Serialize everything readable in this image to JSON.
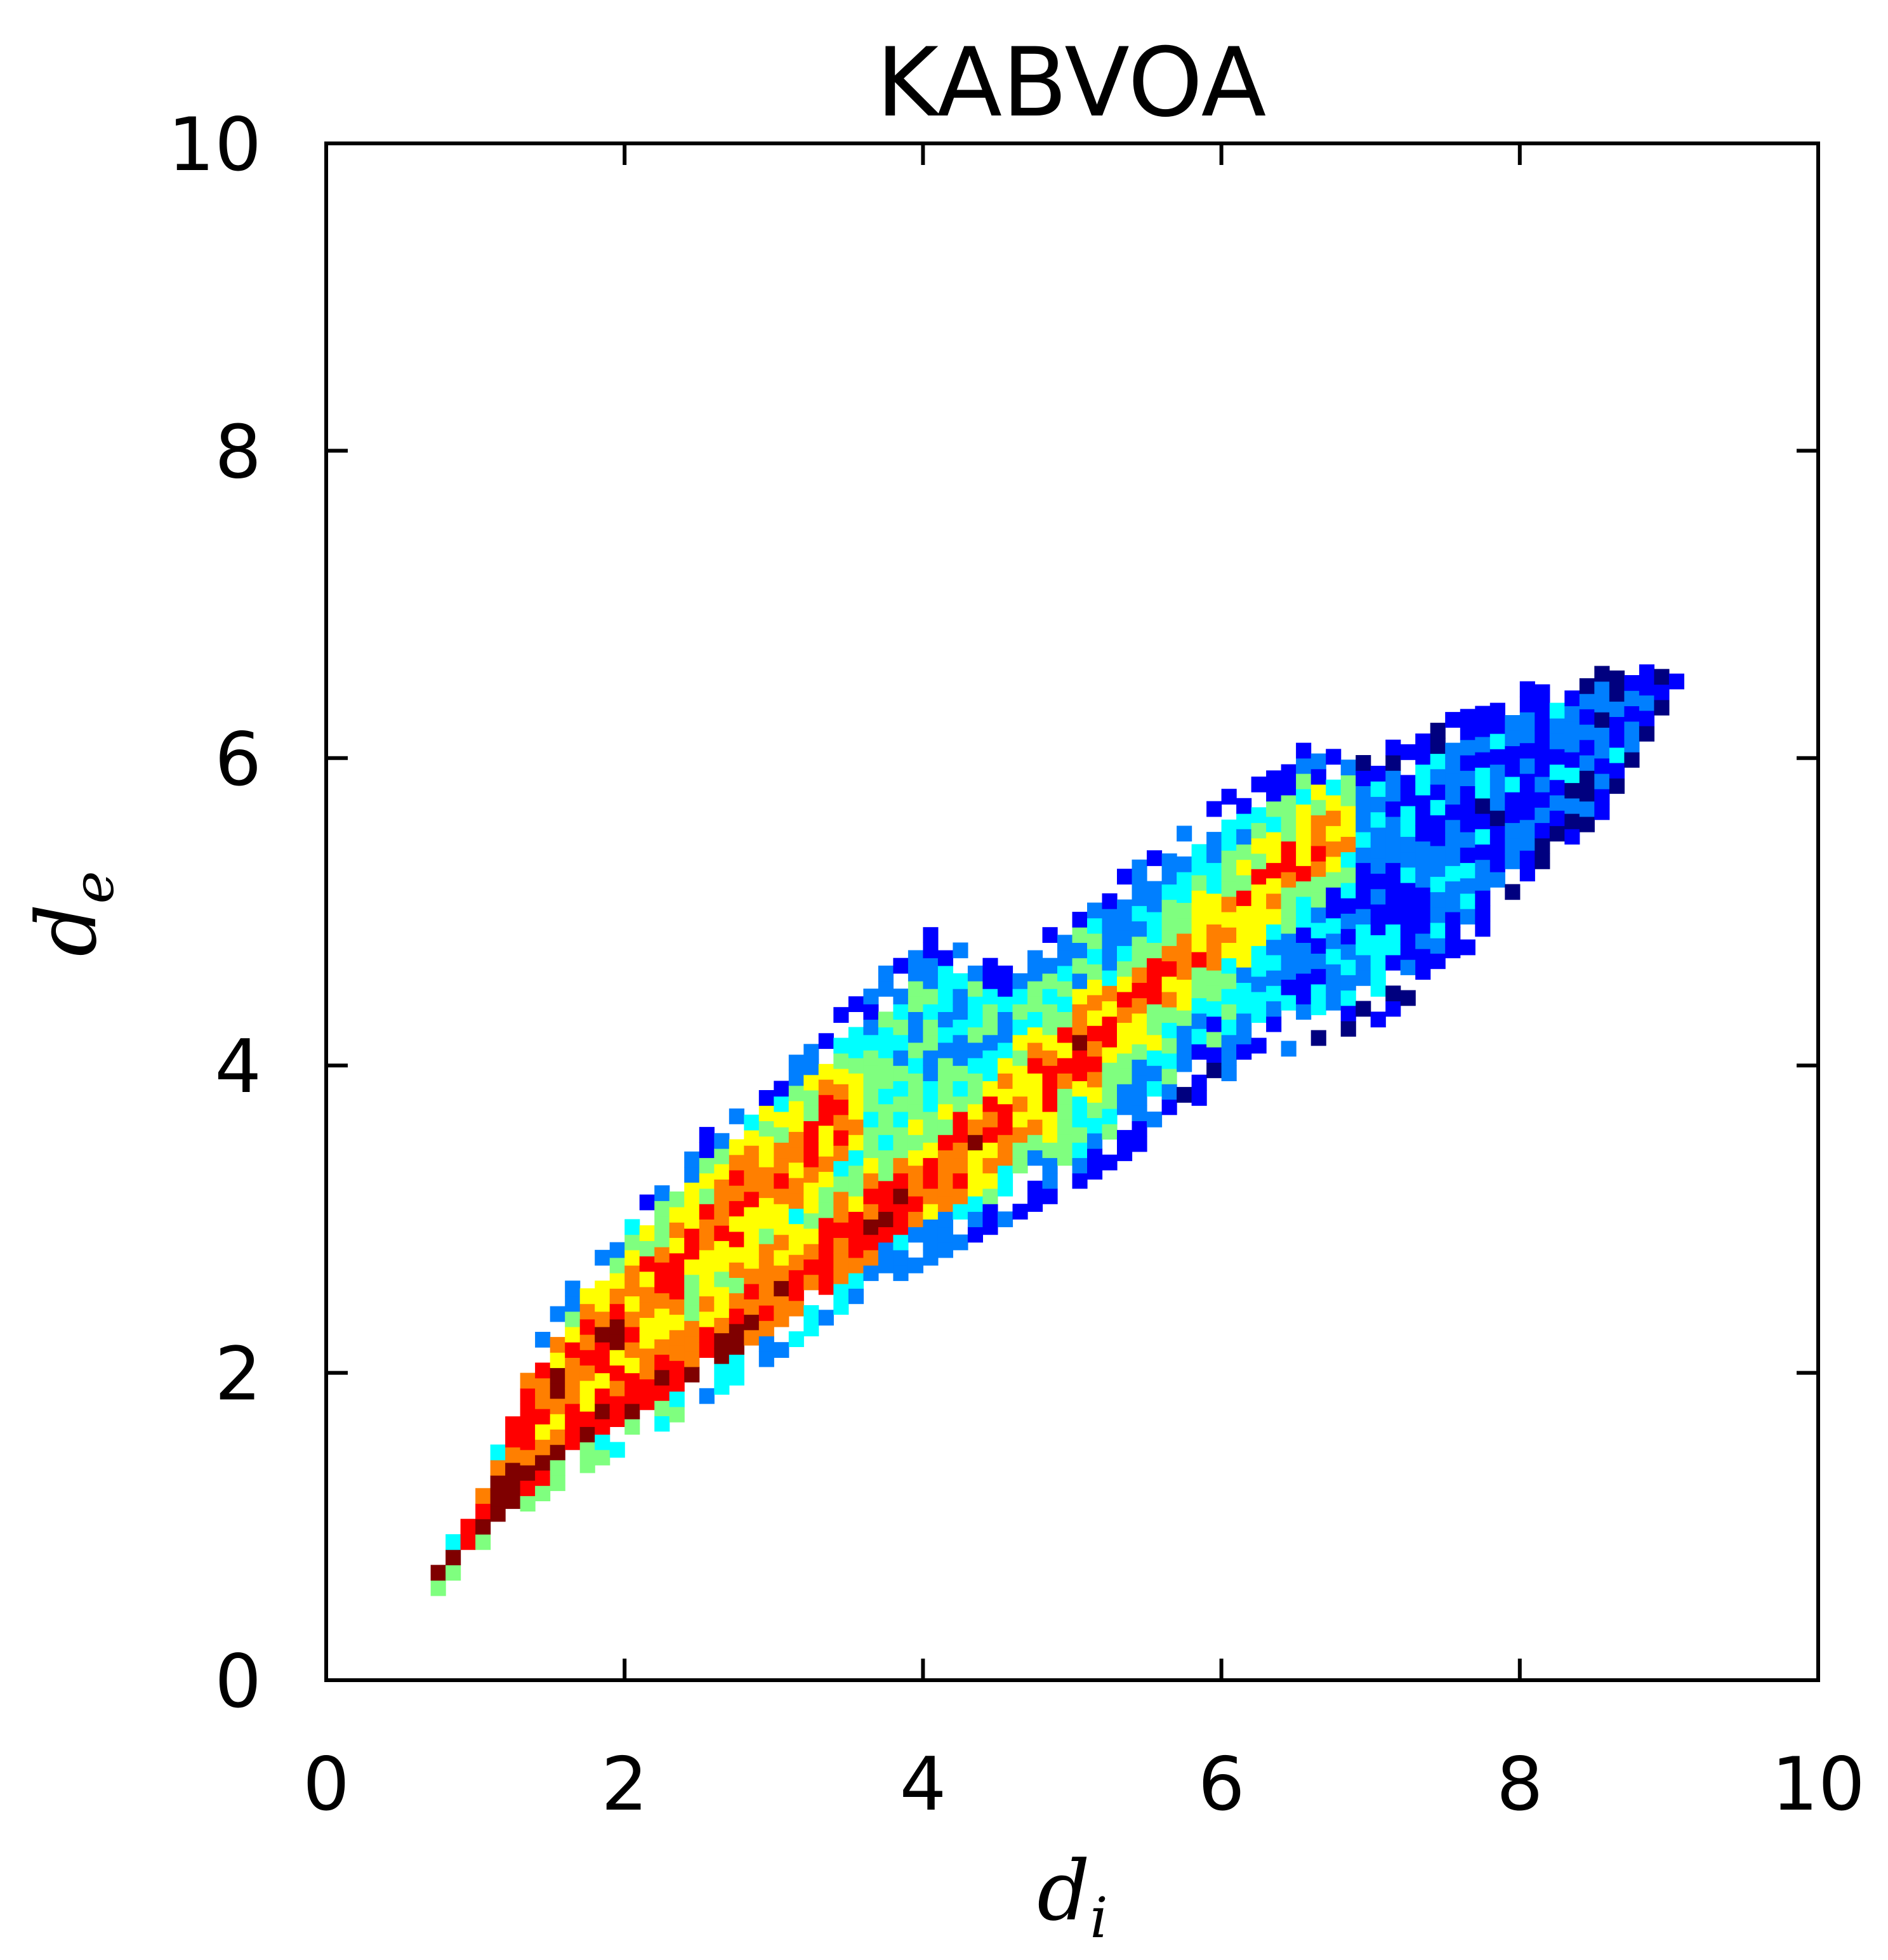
{
  "chart_data": {
    "type": "heatmap",
    "title": "KABVOA",
    "xlabel": {
      "base": "d",
      "sub": "i"
    },
    "ylabel": {
      "base": "d",
      "sub": "e"
    },
    "xlim": [
      0,
      10
    ],
    "ylim": [
      0,
      10
    ],
    "x_ticks": [
      0,
      2,
      4,
      6,
      8,
      10
    ],
    "y_ticks": [
      0,
      2,
      4,
      6,
      8,
      10
    ],
    "x_tick_labels": [
      "0",
      "2",
      "4",
      "6",
      "8",
      "10"
    ],
    "y_tick_labels": [
      "0",
      "2",
      "4",
      "6",
      "8",
      "10"
    ],
    "bin_size": 0.1,
    "colormap": "jet",
    "grid": false,
    "colorbar": false,
    "density_ridges": [
      [
        [
          0.7,
          0.6
        ],
        [
          1.1,
          1.05
        ],
        [
          1.5,
          1.35
        ],
        [
          2.0,
          1.7
        ],
        [
          2.8,
          2.3
        ],
        [
          3.6,
          2.9
        ],
        [
          4.4,
          3.55
        ],
        [
          5.2,
          4.2
        ],
        [
          6.0,
          4.9
        ],
        [
          6.8,
          5.6
        ]
      ],
      [
        [
          1.2,
          1.5
        ],
        [
          1.6,
          1.95
        ],
        [
          2.1,
          2.45
        ],
        [
          2.6,
          2.95
        ],
        [
          3.2,
          3.45
        ],
        [
          3.6,
          3.75
        ]
      ]
    ],
    "region_bounds": [
      {
        "x": 0.7,
        "lower": 0.55,
        "upper": 0.7
      },
      {
        "x": 1.0,
        "lower": 0.85,
        "upper": 1.2
      },
      {
        "x": 1.3,
        "lower": 1.1,
        "upper": 2.0
      },
      {
        "x": 1.6,
        "lower": 1.3,
        "upper": 2.5
      },
      {
        "x": 2.0,
        "lower": 1.5,
        "upper": 3.0
      },
      {
        "x": 2.5,
        "lower": 1.8,
        "upper": 3.5
      },
      {
        "x": 3.0,
        "lower": 2.1,
        "upper": 3.9
      },
      {
        "x": 3.5,
        "lower": 2.45,
        "upper": 4.4
      },
      {
        "x": 4.0,
        "lower": 2.7,
        "upper": 4.8
      },
      {
        "x": 4.5,
        "lower": 2.95,
        "upper": 4.6
      },
      {
        "x": 5.0,
        "lower": 3.2,
        "upper": 5.0
      },
      {
        "x": 5.5,
        "lower": 3.5,
        "upper": 5.35
      },
      {
        "x": 6.0,
        "lower": 3.9,
        "upper": 5.7
      },
      {
        "x": 6.5,
        "lower": 4.1,
        "upper": 6.0
      },
      {
        "x": 7.0,
        "lower": 4.25,
        "upper": 6.0
      },
      {
        "x": 7.5,
        "lower": 4.6,
        "upper": 6.2
      },
      {
        "x": 8.0,
        "lower": 5.2,
        "upper": 6.4
      },
      {
        "x": 8.5,
        "lower": 5.6,
        "upper": 6.5
      },
      {
        "x": 9.0,
        "lower": 6.45,
        "upper": 6.55
      }
    ],
    "colors": {
      "axis": "#000000",
      "background": "#ffffff",
      "jet_scale": [
        "#00007f",
        "#0000ff",
        "#007fff",
        "#00ffff",
        "#7fff7f",
        "#ffff00",
        "#ff7f00",
        "#ff0000",
        "#7f0000"
      ]
    }
  }
}
